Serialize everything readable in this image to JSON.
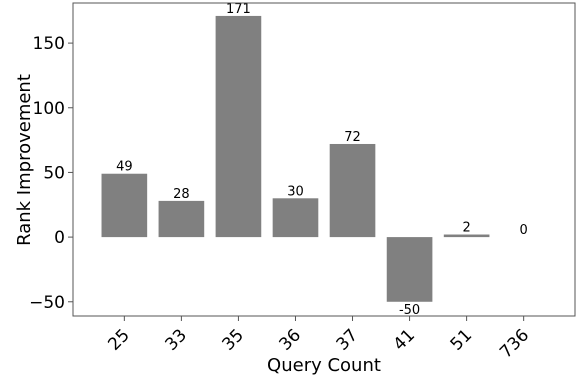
{
  "chart_data": {
    "type": "bar",
    "title": "",
    "xlabel": "Query Count",
    "ylabel": "Rank Improvement",
    "categories": [
      "25",
      "33",
      "35",
      "36",
      "37",
      "41",
      "51",
      "736"
    ],
    "values": [
      49,
      28,
      171,
      30,
      72,
      -50,
      2,
      0
    ],
    "data_labels": [
      "49",
      "28",
      "171",
      "30",
      "72",
      "-50",
      "2",
      "0"
    ],
    "ylim": [
      -61,
      181
    ],
    "yticks": [
      -50,
      0,
      50,
      100,
      150
    ],
    "ytick_labels": [
      "−50",
      "0",
      "50",
      "100",
      "150"
    ],
    "grid": false,
    "legend": "none",
    "colors": {
      "bar": "#808080",
      "axis": "#555555",
      "text": "#000000",
      "background": "#ffffff"
    }
  }
}
